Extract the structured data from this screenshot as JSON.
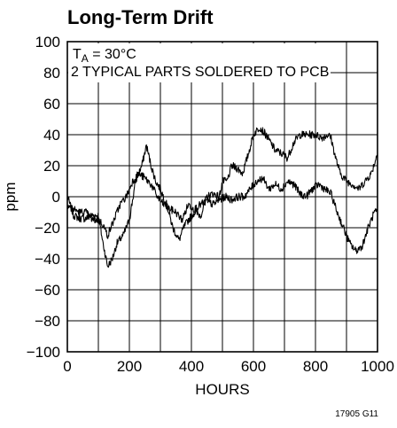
{
  "chart_data": {
    "type": "line",
    "title": "Long-Term Drift",
    "xlabel": "HOURS",
    "ylabel": "ppm",
    "xlim": [
      0,
      1000
    ],
    "ylim": [
      -100,
      100
    ],
    "x_ticks": [
      "0",
      "200",
      "400",
      "600",
      "800",
      "1000"
    ],
    "y_ticks": [
      "100",
      "80",
      "60",
      "40",
      "20",
      "0",
      "−20",
      "−40",
      "−60",
      "−80",
      "−100"
    ],
    "grid": true,
    "annotation": {
      "ta_prefix": "T",
      "ta_subscript": "A",
      "ta_suffix": " = 30°C",
      "line2": "2 TYPICAL PARTS SOLDERED TO PCB"
    },
    "figure_code": "17905 G11",
    "series": [
      {
        "x": [
          0,
          20,
          40,
          60,
          80,
          100,
          115,
          130,
          145,
          160,
          180,
          200,
          220,
          240,
          255,
          270,
          285,
          300,
          320,
          340,
          360,
          375,
          390,
          410,
          430,
          450,
          470,
          490,
          500,
          515,
          530,
          550,
          565,
          580,
          600,
          620,
          640,
          655,
          670,
          690,
          710,
          730,
          750,
          770,
          790,
          800,
          820,
          840,
          850,
          865,
          880,
          900,
          920,
          940,
          960,
          980,
          1000
        ],
        "y": [
          0,
          -12,
          -14,
          -14,
          -12,
          -12,
          -30,
          -45,
          -40,
          -30,
          -25,
          -15,
          10,
          20,
          33,
          20,
          10,
          5,
          -5,
          -20,
          -28,
          -20,
          -15,
          -10,
          -12,
          0,
          2,
          0,
          10,
          10,
          20,
          18,
          15,
          25,
          40,
          45,
          40,
          35,
          30,
          28,
          25,
          35,
          40,
          40,
          40,
          40,
          38,
          40,
          38,
          25,
          15,
          10,
          8,
          5,
          10,
          15,
          28
        ]
      },
      {
        "x": [
          0,
          20,
          40,
          60,
          80,
          100,
          115,
          130,
          150,
          170,
          190,
          210,
          230,
          250,
          270,
          290,
          310,
          330,
          350,
          370,
          390,
          410,
          430,
          450,
          470,
          490,
          510,
          530,
          550,
          570,
          590,
          610,
          630,
          650,
          670,
          690,
          710,
          730,
          750,
          770,
          790,
          810,
          830,
          850,
          870,
          890,
          910,
          930,
          950,
          970,
          990,
          1000
        ],
        "y": [
          -5,
          -8,
          -10,
          -10,
          -15,
          -15,
          -18,
          -25,
          -15,
          -5,
          0,
          10,
          15,
          12,
          8,
          0,
          -5,
          -8,
          -10,
          -15,
          -5,
          -8,
          -5,
          -3,
          -5,
          -2,
          0,
          -2,
          0,
          0,
          5,
          10,
          12,
          5,
          8,
          5,
          10,
          8,
          2,
          0,
          5,
          8,
          5,
          2,
          -10,
          -20,
          -30,
          -35,
          -32,
          -20,
          -10,
          -10
        ]
      }
    ]
  }
}
